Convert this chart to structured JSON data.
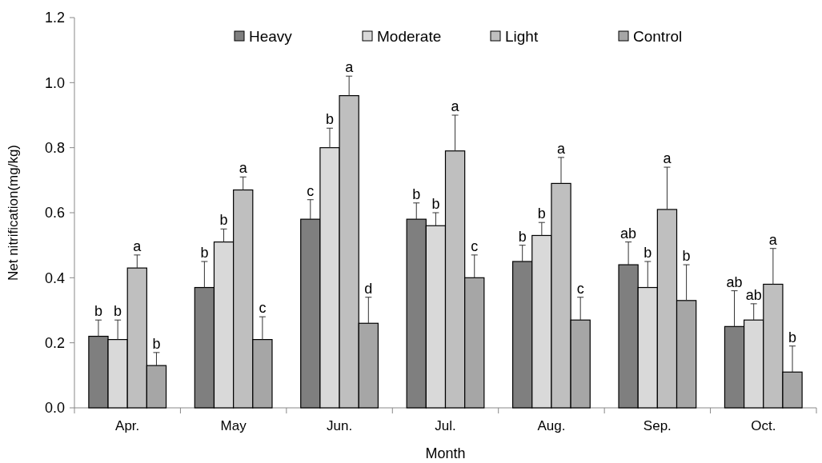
{
  "chart_data": {
    "type": "bar",
    "xlabel": "Month",
    "ylabel": "Net nitrification(mg/kg)",
    "categories": [
      "Apr.",
      "May",
      "Jun.",
      "Jul.",
      "Aug.",
      "Sep.",
      "Oct."
    ],
    "series": [
      {
        "name": "Heavy",
        "color": "#7f7f7f",
        "values": [
          0.22,
          0.37,
          0.58,
          0.58,
          0.45,
          0.44,
          0.25
        ],
        "errors": [
          [
            0.22,
            0.27
          ],
          [
            0.37,
            0.45
          ],
          [
            0.58,
            0.64
          ],
          [
            0.58,
            0.63
          ],
          [
            0.45,
            0.5
          ],
          [
            0.44,
            0.51
          ],
          [
            0.25,
            0.36
          ]
        ],
        "value_labels": [
          "b",
          "b",
          "c",
          "b",
          "b",
          "ab",
          "ab"
        ]
      },
      {
        "name": "Moderate",
        "color": "#d9d9d9",
        "values": [
          0.21,
          0.51,
          0.8,
          0.56,
          0.53,
          0.37,
          0.27
        ],
        "errors": [
          [
            0.21,
            0.27
          ],
          [
            0.51,
            0.55
          ],
          [
            0.8,
            0.86
          ],
          [
            0.56,
            0.6
          ],
          [
            0.53,
            0.57
          ],
          [
            0.37,
            0.45
          ],
          [
            0.27,
            0.32
          ]
        ],
        "value_labels": [
          "b",
          "b",
          "b",
          "b",
          "b",
          "b",
          "ab"
        ]
      },
      {
        "name": "Light",
        "color": "#bfbfbf",
        "values": [
          0.43,
          0.67,
          0.96,
          0.79,
          0.69,
          0.61,
          0.38
        ],
        "errors": [
          [
            0.43,
            0.47
          ],
          [
            0.67,
            0.71
          ],
          [
            0.96,
            1.02
          ],
          [
            0.79,
            0.9
          ],
          [
            0.69,
            0.77
          ],
          [
            0.61,
            0.74
          ],
          [
            0.38,
            0.49
          ]
        ],
        "value_labels": [
          "a",
          "a",
          "a",
          "a",
          "a",
          "a",
          "a"
        ]
      },
      {
        "name": "Control",
        "color": "#a6a6a6",
        "values": [
          0.13,
          0.21,
          0.26,
          0.4,
          0.27,
          0.33,
          0.11
        ],
        "errors": [
          [
            0.13,
            0.17
          ],
          [
            0.21,
            0.28
          ],
          [
            0.26,
            0.34
          ],
          [
            0.4,
            0.47
          ],
          [
            0.27,
            0.34
          ],
          [
            0.33,
            0.44
          ],
          [
            0.11,
            0.19
          ]
        ],
        "value_labels": [
          "b",
          "c",
          "d",
          "c",
          "c",
          "b",
          "b"
        ]
      }
    ],
    "ylim": [
      0,
      1.2
    ],
    "yticks": [
      {
        "value": 0,
        "label": "0.0"
      },
      {
        "value": 0.2,
        "label": "0.2"
      },
      {
        "value": 0.4,
        "label": "0.4"
      },
      {
        "value": 0.6,
        "label": "0.6"
      },
      {
        "value": 0.8,
        "label": "0.8"
      },
      {
        "value": 1,
        "label": "1.0"
      },
      {
        "value": 1.2,
        "label": "1.2"
      }
    ],
    "grid": false,
    "legend": "top"
  }
}
